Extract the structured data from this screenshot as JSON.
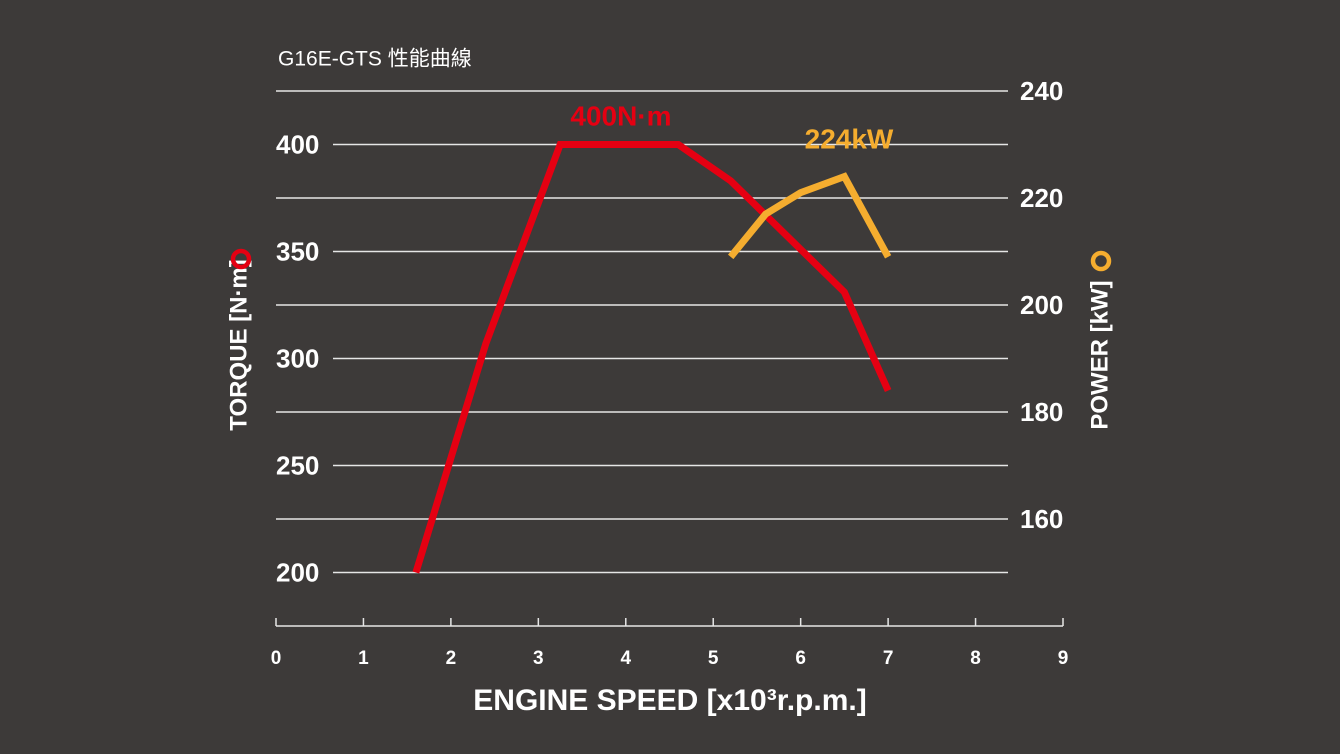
{
  "chart_data": {
    "type": "line",
    "title": "G16E-GTS 性能曲線",
    "x_label": "ENGINE SPEED [x10³r.p.m.]",
    "y_label": "TORQUE [N·m]",
    "y2_label": "POWER [kW]",
    "annotations": [
      "400N·m",
      "224kW"
    ],
    "xlim": [
      0,
      9
    ],
    "xticks": [
      0,
      1,
      2,
      3,
      4,
      5,
      6,
      7,
      8,
      9
    ],
    "ylim": [
      175,
      425
    ],
    "yticks": [
      200,
      250,
      300,
      350,
      400
    ],
    "y2lim": [
      140,
      240
    ],
    "y2ticks": [
      160,
      180,
      200,
      220,
      240
    ],
    "grid": true,
    "series": [
      {
        "color": "#e50012",
        "x": [
          1.6,
          2.4,
          3.25,
          4.6,
          5.2,
          5.6,
          6.5,
          7.0
        ],
        "values": [
          200,
          307,
          400,
          400,
          383,
          367,
          331,
          285
        ]
      },
      {
        "color": "#f5ad2f",
        "axis": "y2",
        "x": [
          5.2,
          5.6,
          6.0,
          6.5,
          7.0
        ],
        "values": [
          209,
          217,
          221,
          224,
          209
        ]
      }
    ]
  }
}
